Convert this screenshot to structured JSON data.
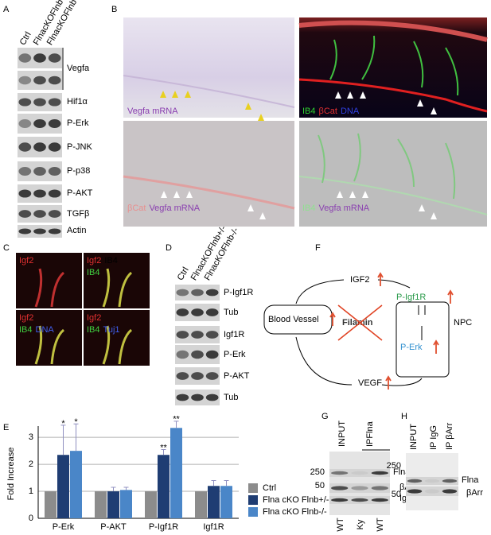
{
  "panel_labels": [
    "A",
    "B",
    "C",
    "D",
    "E",
    "F",
    "G",
    "H"
  ],
  "panel_a": {
    "columns": [
      "Ctrl",
      "FlnacKOFlnb+/-",
      "FlnacKOFlnb-/-"
    ],
    "rows": [
      "Vegfa",
      "Hif1α",
      "P-Erk",
      "P-JNK",
      "P-p38",
      "P-AKT",
      "TGFβ",
      "Actin"
    ]
  },
  "panel_b": {
    "captions": [
      [
        "Vegfa mRNA"
      ],
      [
        "IB4",
        "βCat",
        "DNA"
      ],
      [
        "βCat",
        "Vegfa mRNA"
      ],
      [
        "IB4",
        "Vegfa mRNA"
      ]
    ]
  },
  "panel_c": {
    "captions": [
      [
        "Igf2"
      ],
      [
        "Igf2",
        "IB4"
      ],
      [
        "Igf2",
        "IB4",
        "DNA"
      ],
      [
        "Igf2",
        "IB4",
        "Tuj1"
      ]
    ]
  },
  "panel_d": {
    "columns": [
      "Ctrl",
      "FlnacKOFlnb+/-",
      "FlnacKOFlnb-/-"
    ],
    "rows": [
      "P-Igf1R",
      "Tub",
      "Igf1R",
      "P-Erk",
      "P-AKT",
      "Tub"
    ]
  },
  "panel_f": {
    "igf2": "IGF2",
    "receptor": "P-Igf1R",
    "vessel": "Blood Vessel",
    "filamin": "Filamin",
    "npc": "NPC",
    "erk": "P-Erk",
    "vegf": "VEGF"
  },
  "panel_g": {
    "lanes_top": [
      "INPUT",
      "IPFlna"
    ],
    "markers": [
      "250",
      "50"
    ],
    "bands": [
      "Flna",
      "βArr",
      "Ig"
    ],
    "lanes_bottom": [
      "WT",
      "Ky",
      "WT"
    ]
  },
  "panel_h": {
    "lanes_top": [
      "INPUT",
      "IP IgG",
      "IP βArr"
    ],
    "markers": [
      "250",
      "50"
    ],
    "bands": [
      "Flna",
      "βArr"
    ]
  },
  "chart_data": {
    "type": "bar",
    "y_label": "Fold Increase",
    "categories": [
      "P-Erk",
      "P-AKT",
      "P-Igf1R",
      "Igf1R"
    ],
    "series": [
      {
        "name": "Ctrl",
        "color": "#8c8c8c",
        "values": [
          1,
          1,
          1,
          1
        ]
      },
      {
        "name": "Flna cKO Flnb+/-",
        "color": "#1f3d73",
        "values": [
          2.35,
          1,
          2.35,
          1.2
        ],
        "errors": [
          1.1,
          0.15,
          0.2,
          0.2
        ],
        "significance": [
          "*",
          null,
          "**",
          null
        ]
      },
      {
        "name": "Flna cKO Flnb-/-",
        "color": "#4a86c8",
        "values": [
          2.5,
          1.05,
          3.35,
          1.2
        ],
        "errors": [
          1.0,
          0.1,
          0.25,
          0.2
        ],
        "significance": [
          "*",
          null,
          "**",
          null
        ]
      }
    ],
    "ylim": [
      0,
      3.3
    ],
    "yticks": [
      0,
      1,
      2,
      3
    ],
    "grid": true
  }
}
